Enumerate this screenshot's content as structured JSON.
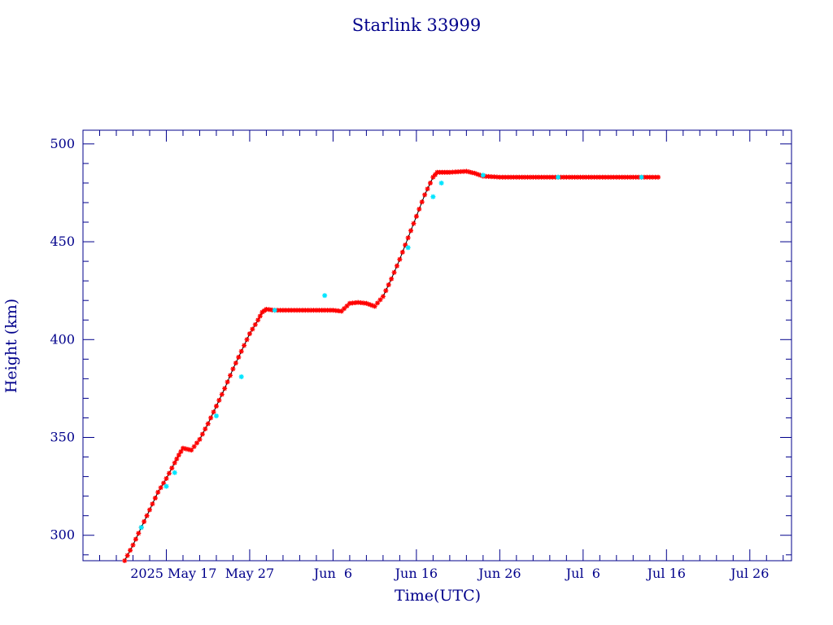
{
  "chart_data": {
    "type": "scatter",
    "title": "Starlink 33999",
    "xlabel": "Time(UTC)",
    "ylabel": "Height (km)",
    "x_tick_labels": [
      "2025 May 17",
      "May 27",
      "Jun  6",
      "Jun 16",
      "Jun 26",
      "Jul  6",
      "Jul 16",
      "Jul 26"
    ],
    "y_tick_labels": [
      "300",
      "350",
      "400",
      "450",
      "500"
    ],
    "xlim": [
      "2025-05-07",
      "2025-07-31"
    ],
    "ylim": [
      287,
      507
    ],
    "grid": false,
    "colors": {
      "axis": "#00008b",
      "line": "#000000",
      "primary_marker": "#ff0000",
      "secondary_marker": "#00e5ff"
    },
    "series": [
      {
        "points": [
          [
            "2025-05-12",
            287
          ],
          [
            "2025-05-13",
            295
          ],
          [
            "2025-05-14",
            304
          ],
          [
            "2025-05-15",
            313
          ],
          [
            "2025-05-16",
            322
          ],
          [
            "2025-05-17",
            329
          ],
          [
            "2025-05-18",
            337
          ],
          [
            "2025-05-18 12:00",
            341
          ],
          [
            "2025-05-19",
            344.5
          ],
          [
            "2025-05-20",
            343.5
          ],
          [
            "2025-05-21",
            349
          ],
          [
            "2025-05-22",
            357
          ],
          [
            "2025-05-23",
            366
          ],
          [
            "2025-05-24",
            375
          ],
          [
            "2025-05-25",
            385
          ],
          [
            "2025-05-26",
            394
          ],
          [
            "2025-05-27",
            403
          ],
          [
            "2025-05-28",
            410
          ],
          [
            "2025-05-28 12:00",
            414
          ],
          [
            "2025-05-29",
            415.5
          ],
          [
            "2025-05-30",
            415
          ],
          [
            "2025-06-01",
            415
          ],
          [
            "2025-06-03",
            415
          ],
          [
            "2025-06-05",
            415
          ],
          [
            "2025-06-06",
            415
          ],
          [
            "2025-06-07",
            414.5
          ],
          [
            "2025-06-08",
            418.5
          ],
          [
            "2025-06-09",
            419
          ],
          [
            "2025-06-10",
            418.5
          ],
          [
            "2025-06-11",
            417
          ],
          [
            "2025-06-12",
            422
          ],
          [
            "2025-06-13",
            431
          ],
          [
            "2025-06-14",
            441
          ],
          [
            "2025-06-15",
            452
          ],
          [
            "2025-06-16",
            463
          ],
          [
            "2025-06-17",
            474
          ],
          [
            "2025-06-18",
            483
          ],
          [
            "2025-06-18 12:00",
            485.5
          ],
          [
            "2025-06-20",
            485.5
          ],
          [
            "2025-06-22",
            486
          ],
          [
            "2025-06-23",
            485
          ],
          [
            "2025-06-24",
            483.5
          ],
          [
            "2025-06-26",
            483
          ],
          [
            "2025-06-30",
            483
          ],
          [
            "2025-07-04",
            483
          ],
          [
            "2025-07-08",
            483
          ],
          [
            "2025-07-12",
            483
          ],
          [
            "2025-07-15",
            483
          ]
        ]
      }
    ],
    "secondary_points": [
      [
        "2025-05-14",
        304
      ],
      [
        "2025-05-17",
        325
      ],
      [
        "2025-05-18",
        332
      ],
      [
        "2025-05-23",
        361
      ],
      [
        "2025-05-26",
        381
      ],
      [
        "2025-05-30",
        415
      ],
      [
        "2025-06-05",
        422.5
      ],
      [
        "2025-06-15",
        447
      ],
      [
        "2025-06-18",
        473
      ],
      [
        "2025-06-19",
        480
      ],
      [
        "2025-06-24",
        484
      ],
      [
        "2025-07-03",
        483
      ],
      [
        "2025-07-13",
        483
      ]
    ]
  }
}
